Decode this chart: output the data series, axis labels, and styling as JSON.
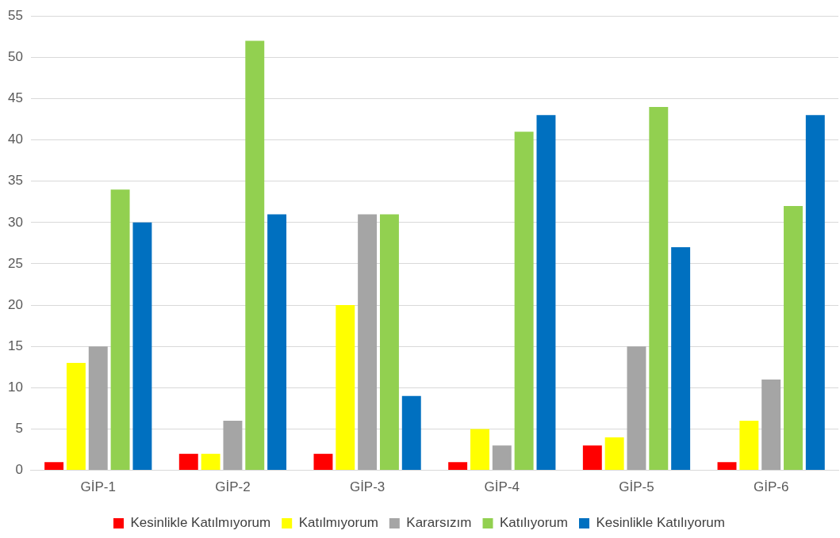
{
  "chart_data": {
    "type": "bar",
    "categories": [
      "GİP-1",
      "GİP-2",
      "GİP-3",
      "GİP-4",
      "GİP-5",
      "GİP-6"
    ],
    "series": [
      {
        "name": "Kesinlikle Katılmıyorum",
        "color": "#ff0000",
        "values": [
          1,
          2,
          2,
          1,
          3,
          1
        ]
      },
      {
        "name": "Katılmıyorum",
        "color": "#ffff00",
        "values": [
          13,
          2,
          20,
          5,
          4,
          6
        ]
      },
      {
        "name": "Kararsızım",
        "color": "#a5a5a5",
        "values": [
          15,
          6,
          31,
          3,
          15,
          11
        ]
      },
      {
        "name": "Katılıyorum",
        "color": "#92d050",
        "values": [
          34,
          52,
          31,
          41,
          44,
          32
        ]
      },
      {
        "name": "Kesinlikle Katılıyorum",
        "color": "#0070c0",
        "values": [
          30,
          31,
          9,
          43,
          27,
          43
        ]
      }
    ],
    "ylim": [
      0,
      55
    ],
    "yticks": [
      0,
      5,
      10,
      15,
      20,
      25,
      30,
      35,
      40,
      45,
      50,
      55
    ],
    "grid": "y",
    "legend": "bottom"
  }
}
